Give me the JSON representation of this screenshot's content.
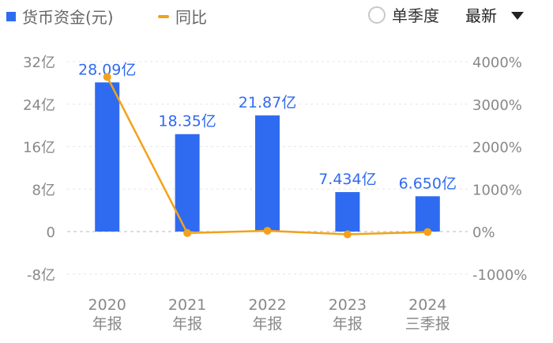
{
  "legend": {
    "series_a": "货币资金(元)",
    "series_b": "同比"
  },
  "controls": {
    "radio_label": "单季度",
    "sort_label": "最新"
  },
  "colors": {
    "bar": "#2f6bf0",
    "line": "#f2a21a",
    "axis_text": "#888888",
    "grid": "#e6e6e6"
  },
  "chart_data": {
    "type": "bar",
    "categories": [
      [
        "2020",
        "年报"
      ],
      [
        "2021",
        "年报"
      ],
      [
        "2022",
        "年报"
      ],
      [
        "2023",
        "年报"
      ],
      [
        "2024",
        "三季报"
      ]
    ],
    "series": [
      {
        "name": "货币资金(元)",
        "type": "bar",
        "axis": "left",
        "values": [
          28.09,
          18.35,
          21.87,
          7.434,
          6.65
        ],
        "labels": [
          "28.09亿",
          "18.35亿",
          "21.87亿",
          "7.434亿",
          "6.650亿"
        ]
      },
      {
        "name": "同比",
        "type": "line",
        "axis": "right",
        "values": [
          3640,
          -35,
          19,
          -66,
          -11
        ]
      }
    ],
    "left_axis": {
      "ticks": [
        32,
        24,
        16,
        8,
        0,
        -8
      ],
      "tick_labels": [
        "32亿",
        "24亿",
        "16亿",
        "8亿",
        "0",
        "-8亿"
      ],
      "range": [
        -8,
        32
      ]
    },
    "right_axis": {
      "ticks": [
        4000,
        3000,
        2000,
        1000,
        0,
        -1000
      ],
      "tick_labels": [
        "4000%",
        "3000%",
        "2000%",
        "1000%",
        "0%",
        "-1000%"
      ],
      "range": [
        -1000,
        4000
      ]
    },
    "grid": true
  }
}
